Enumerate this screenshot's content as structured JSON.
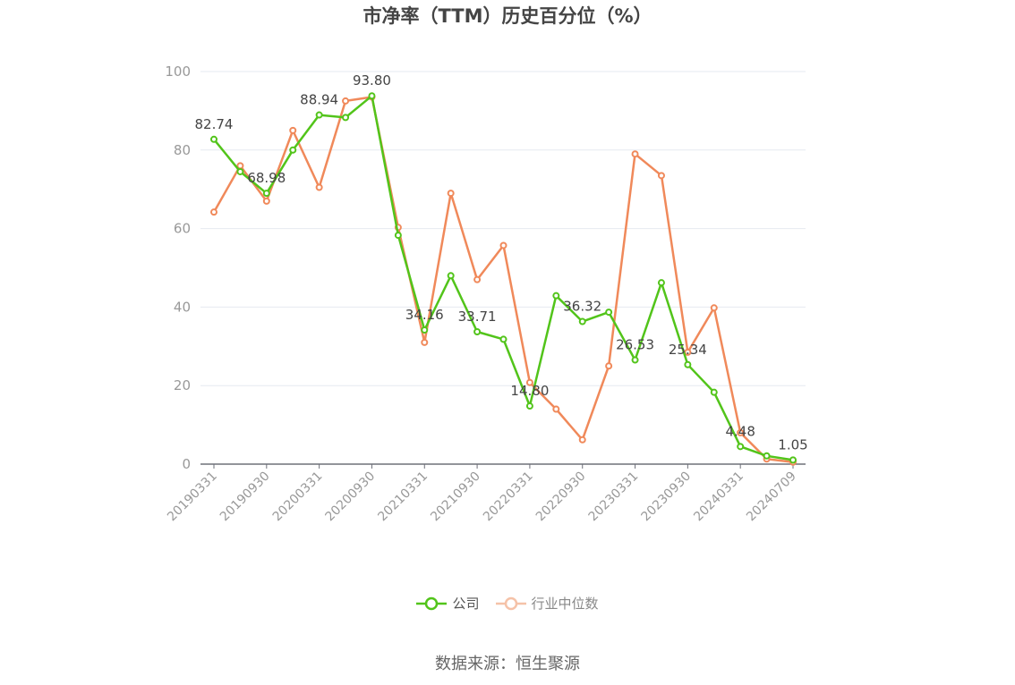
{
  "chart_data": {
    "type": "line",
    "title": "市净率（TTM）历史百分位（%）",
    "ylim": [
      0,
      100
    ],
    "yticks": [
      0,
      20,
      40,
      60,
      80,
      100
    ],
    "grid": true,
    "legend_position": "bottom-center",
    "x_tick_labels": [
      "20190331",
      "20190930",
      "20200331",
      "20200930",
      "20210331",
      "20210930",
      "20220331",
      "20220930",
      "20230331",
      "20230930",
      "20240331",
      "20240709"
    ],
    "x": [
      "20190331",
      "20190630",
      "20190930",
      "20191231",
      "20200331",
      "20200630",
      "20200930",
      "20201231",
      "20210331",
      "20210630",
      "20210930",
      "20211231",
      "20220331",
      "20220630",
      "20220930",
      "20221231",
      "20230331",
      "20230630",
      "20230930",
      "20231231",
      "20240331",
      "20240630",
      "20240709"
    ],
    "series": [
      {
        "name": "公司",
        "color": "#52c41a",
        "values": [
          82.74,
          74.5,
          68.98,
          80.0,
          88.94,
          88.3,
          93.8,
          58.3,
          34.16,
          48.0,
          33.71,
          31.8,
          14.8,
          42.9,
          36.32,
          38.7,
          26.53,
          46.2,
          25.34,
          18.3,
          4.48,
          2.1,
          1.05
        ],
        "labels": {
          "0": "82.74",
          "2": "68.98",
          "4": "88.94",
          "6": "93.80",
          "8": "34.16",
          "10": "33.71",
          "12": "14.80",
          "14": "36.32",
          "16": "26.53",
          "18": "25.34",
          "20": "4.48",
          "22": "1.05"
        }
      },
      {
        "name": "行业中位数",
        "color": "#f0895a",
        "values": [
          64.2,
          76.0,
          67.0,
          85.0,
          70.5,
          92.5,
          93.5,
          60.3,
          31.0,
          69.0,
          47.0,
          55.7,
          20.8,
          14.0,
          6.2,
          25.0,
          79.0,
          73.5,
          28.5,
          39.8,
          8.0,
          1.3,
          0.5
        ]
      }
    ]
  },
  "legend": {
    "company": "公司",
    "industry": "行业中位数"
  },
  "source": "数据来源：恒生聚源"
}
